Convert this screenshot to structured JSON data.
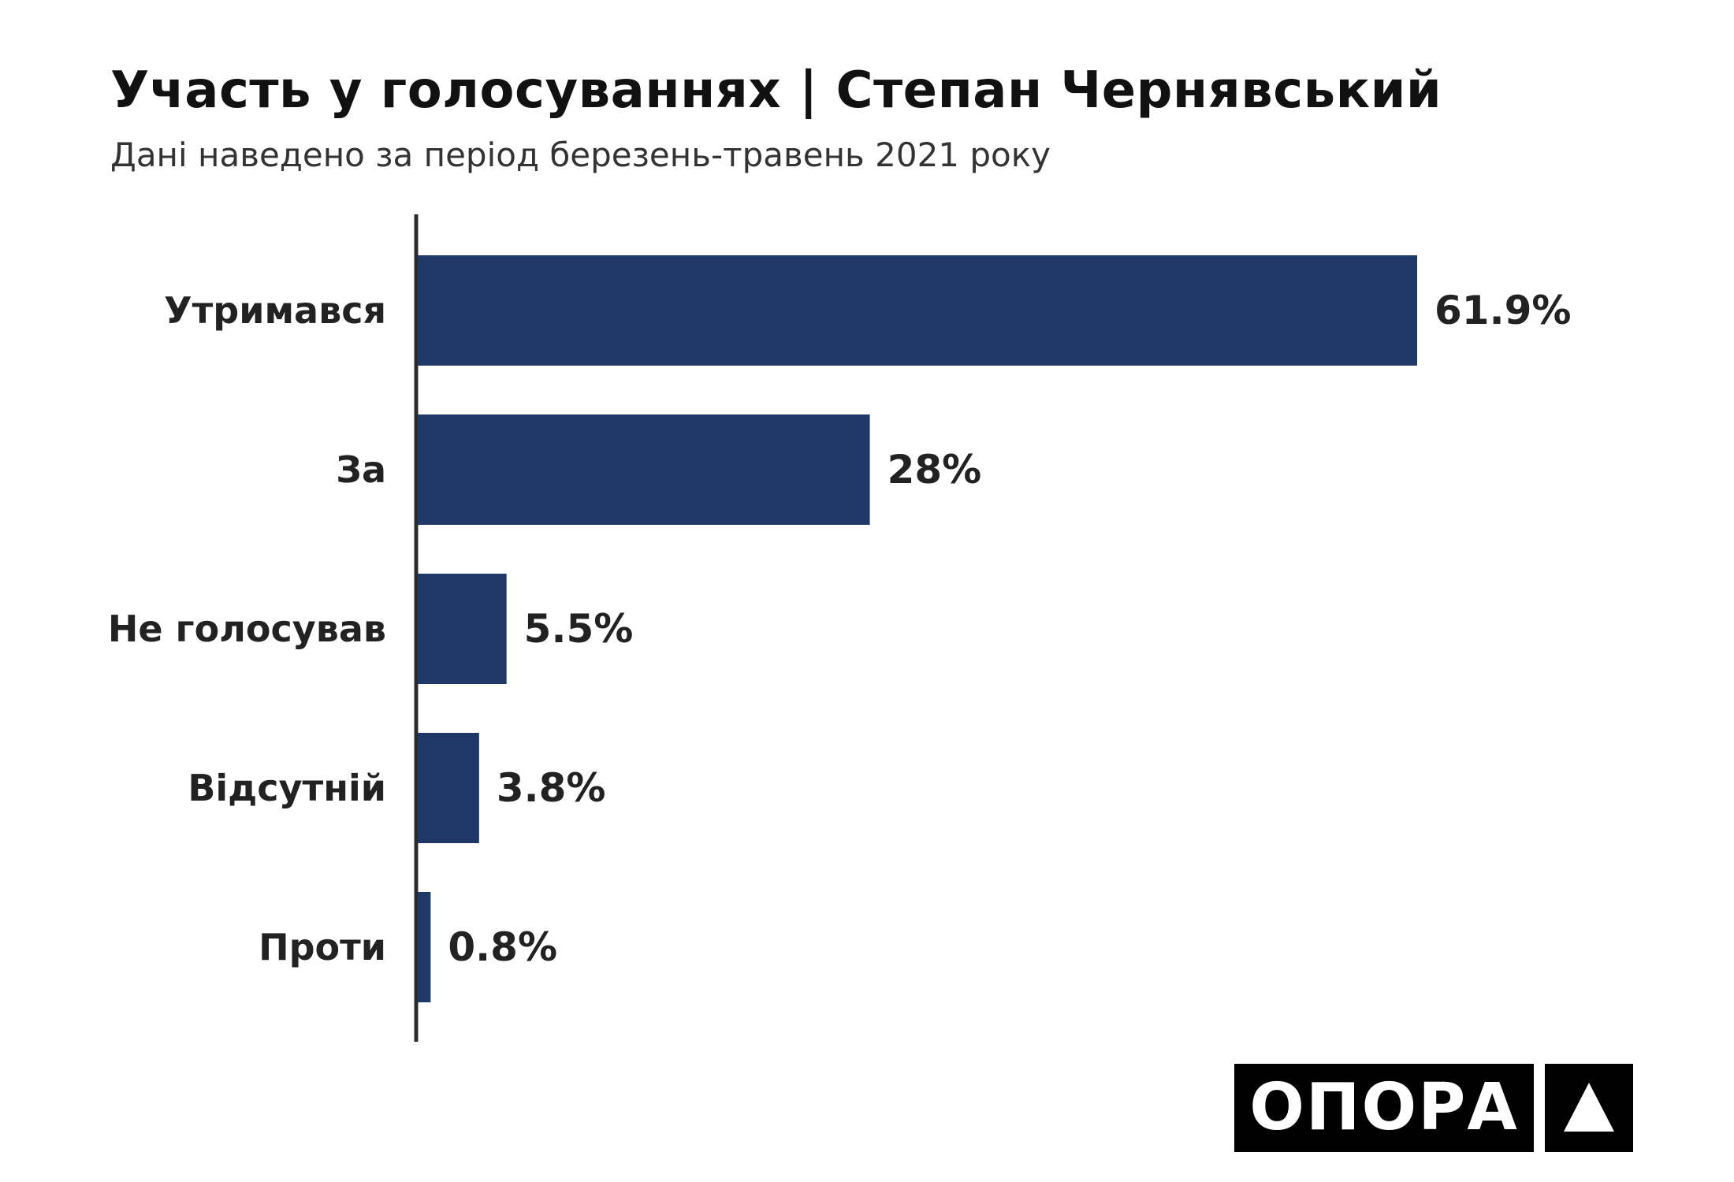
{
  "title": "Участь у голосуваннях | Степан Чернявський",
  "subtitle": "Дані наведено за період березень-травень 2021 року",
  "logo": {
    "text": "ОПОРА",
    "icon": "triangle-icon"
  },
  "colors": {
    "bar": "#1f3868",
    "axis": "#2b2b2b",
    "text": "#222222"
  },
  "chart_data": {
    "type": "bar",
    "orientation": "horizontal",
    "title": "Участь у голосуваннях | Степан Чернявський",
    "subtitle": "Дані наведено за період березень-травень 2021 року",
    "categories": [
      "Утримався",
      "За",
      "Не голосував",
      "Відсутній",
      "Проти"
    ],
    "values": [
      61.9,
      28,
      5.5,
      3.8,
      0.8
    ],
    "labels": [
      "61.9%",
      "28%",
      "5.5%",
      "3.8%",
      "0.8%"
    ],
    "unit": "%",
    "xlim": [
      0,
      100
    ],
    "grid": false,
    "legend": "none"
  }
}
